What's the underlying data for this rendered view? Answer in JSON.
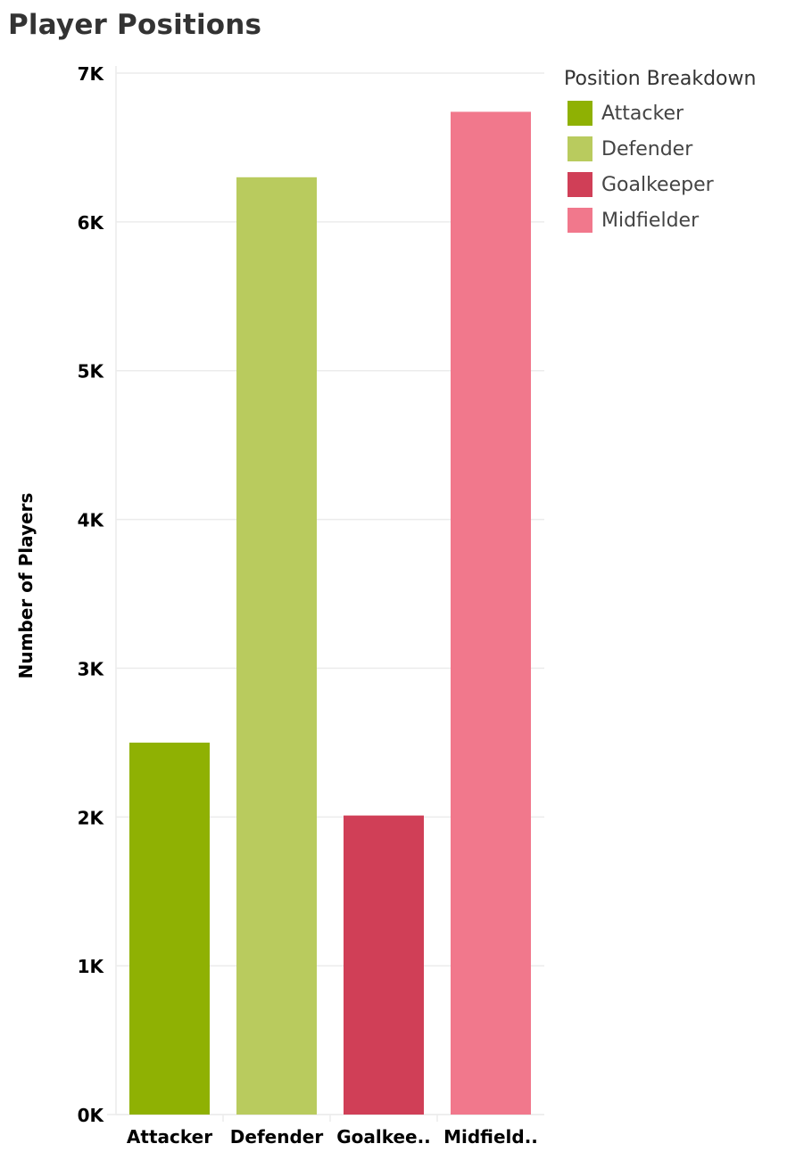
{
  "chart_data": {
    "type": "bar",
    "title": "Player Positions",
    "ylabel": "Number of Players",
    "xlabel": "",
    "categories": [
      "Attacker",
      "Defender",
      "Goalkeeper",
      "Midfielder"
    ],
    "category_labels": [
      "Attacker",
      "Defender",
      "Goalkee..",
      "Midfield.."
    ],
    "values": [
      2500,
      6300,
      2010,
      6740
    ],
    "colors": [
      "#8fb103",
      "#b9cb5e",
      "#d03f57",
      "#f1788c"
    ],
    "ylim": [
      0,
      7000
    ],
    "yticks": [
      0,
      1000,
      2000,
      3000,
      4000,
      5000,
      6000,
      7000
    ],
    "ytick_labels": [
      "0K",
      "1K",
      "2K",
      "3K",
      "4K",
      "5K",
      "6K",
      "7K"
    ],
    "grid": true,
    "legend": {
      "title": "Position Breakdown",
      "placement": "right",
      "entries": [
        "Attacker",
        "Defender",
        "Goalkeeper",
        "Midfielder"
      ]
    }
  }
}
